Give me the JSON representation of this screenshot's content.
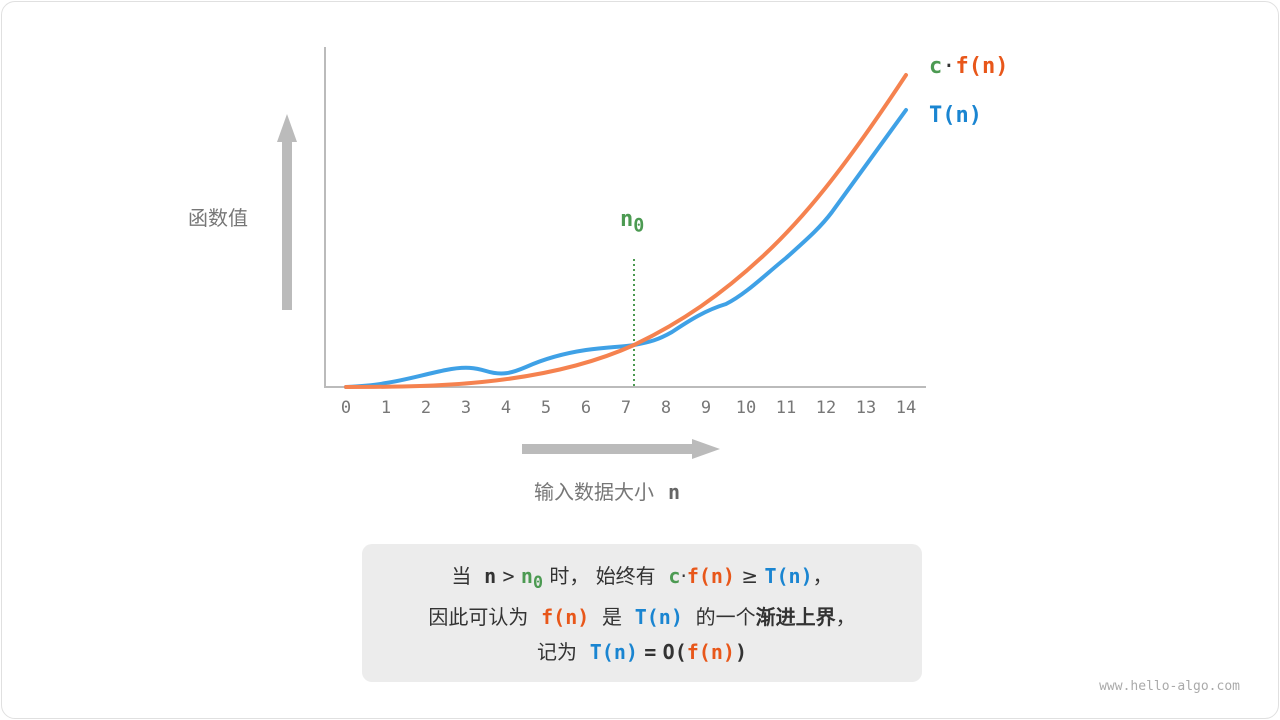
{
  "y_axis_label": "函数值",
  "x_axis_label": "输入数据大小",
  "x_axis_var": "n",
  "x_ticks": [
    "0",
    "1",
    "2",
    "3",
    "4",
    "5",
    "6",
    "7",
    "8",
    "9",
    "10",
    "11",
    "12",
    "13",
    "14"
  ],
  "threshold_label": {
    "base": "n",
    "sub": "0"
  },
  "legend": {
    "upper": {
      "c": "c",
      "dot": "·",
      "f": "f(n)"
    },
    "lower": "T(n)"
  },
  "colors": {
    "upper_curve": "#f5824f",
    "lower_curve": "#3fa1e6",
    "threshold": "#4c9a52"
  },
  "note": {
    "l1": {
      "a": "当",
      "n": "n",
      "gt": ">",
      "n0": "n",
      "n0sub": "0",
      "b": "时，",
      "c": "始终有",
      "cc": "c",
      "dot": "·",
      "fn": "f(n)",
      "ge": "≥",
      "tn": "T(n)",
      "comma": "，"
    },
    "l2": {
      "a": "因此可认为",
      "fn": "f(n)",
      "b": "是",
      "tn": "T(n)",
      "c": "的一个",
      "bold": "渐进上界",
      "comma": "，"
    },
    "l3": {
      "a": "记为",
      "tn": "T(n)",
      "eq": "=",
      "o": "O(",
      "fn": "f(n)",
      "close": ")"
    }
  },
  "watermark": "www.hello-algo.com"
}
